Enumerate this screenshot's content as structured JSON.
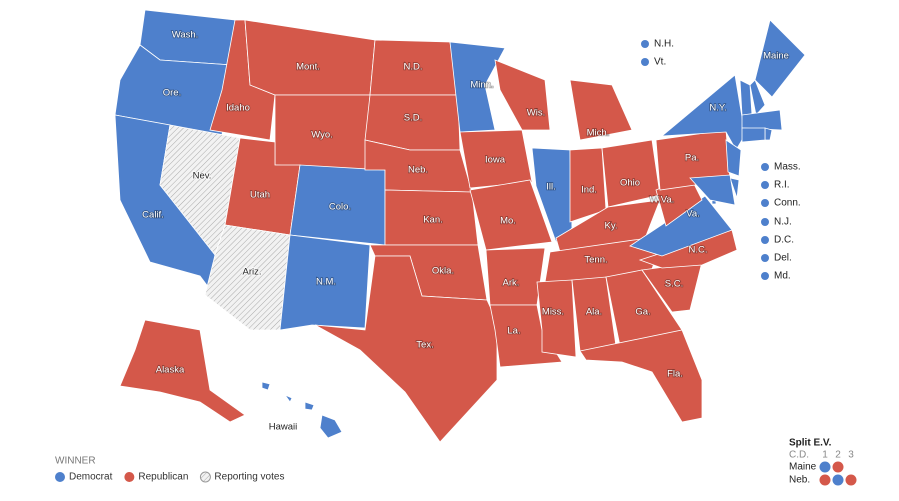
{
  "legend": {
    "title": "WINNER",
    "items": [
      {
        "label": "Democrat",
        "color": "#4e80cc"
      },
      {
        "label": "Republican",
        "color": "#d4584a"
      },
      {
        "label": "Reporting votes"
      }
    ]
  },
  "states": [
    {
      "label": "Wash.",
      "winner": "Democrat"
    },
    {
      "label": "Ore.",
      "winner": "Democrat"
    },
    {
      "label": "Calif.",
      "winner": "Democrat"
    },
    {
      "label": "Nev.",
      "winner": "Reporting votes"
    },
    {
      "label": "Idaho",
      "winner": "Republican"
    },
    {
      "label": "Mont.",
      "winner": "Republican"
    },
    {
      "label": "Wyo.",
      "winner": "Republican"
    },
    {
      "label": "Utah",
      "winner": "Republican"
    },
    {
      "label": "Ariz.",
      "winner": "Reporting votes"
    },
    {
      "label": "Colo.",
      "winner": "Democrat"
    },
    {
      "label": "N.M.",
      "winner": "Democrat"
    },
    {
      "label": "N.D.",
      "winner": "Republican"
    },
    {
      "label": "S.D.",
      "winner": "Republican"
    },
    {
      "label": "Neb.",
      "winner": "Republican"
    },
    {
      "label": "Kan.",
      "winner": "Republican"
    },
    {
      "label": "Okla.",
      "winner": "Republican"
    },
    {
      "label": "Tex.",
      "winner": "Republican"
    },
    {
      "label": "Minn.",
      "winner": "Democrat"
    },
    {
      "label": "Iowa",
      "winner": "Republican"
    },
    {
      "label": "Mo.",
      "winner": "Republican"
    },
    {
      "label": "Ark.",
      "winner": "Republican"
    },
    {
      "label": "La.",
      "winner": "Republican"
    },
    {
      "label": "Wis.",
      "winner": "Republican"
    },
    {
      "label": "Ill.",
      "winner": "Democrat"
    },
    {
      "label": "Mich.",
      "winner": "Republican"
    },
    {
      "label": "Ind.",
      "winner": "Republican"
    },
    {
      "label": "Ohio",
      "winner": "Republican"
    },
    {
      "label": "Ky.",
      "winner": "Republican"
    },
    {
      "label": "Tenn.",
      "winner": "Republican"
    },
    {
      "label": "Miss.",
      "winner": "Republican"
    },
    {
      "label": "Ala.",
      "winner": "Republican"
    },
    {
      "label": "Ga.",
      "winner": "Republican"
    },
    {
      "label": "Fla.",
      "winner": "Republican"
    },
    {
      "label": "S.C.",
      "winner": "Republican"
    },
    {
      "label": "N.C.",
      "winner": "Republican"
    },
    {
      "label": "Va.",
      "winner": "Democrat"
    },
    {
      "label": "W.Va.",
      "winner": "Republican"
    },
    {
      "label": "Pa.",
      "winner": "Republican"
    },
    {
      "label": "N.Y.",
      "winner": "Democrat"
    },
    {
      "label": "Maine",
      "winner": "Democrat"
    },
    {
      "label": "Alaska",
      "winner": "Republican"
    },
    {
      "label": "Hawaii",
      "winner": "Democrat"
    },
    {
      "label": "N.H.",
      "winner": "Democrat"
    },
    {
      "label": "Vt.",
      "winner": "Democrat"
    },
    {
      "label": "Mass.",
      "winner": "Democrat"
    },
    {
      "label": "R.I.",
      "winner": "Democrat"
    },
    {
      "label": "Conn.",
      "winner": "Democrat"
    },
    {
      "label": "N.J.",
      "winner": "Democrat"
    },
    {
      "label": "D.C.",
      "winner": "Democrat"
    },
    {
      "label": "Del.",
      "winner": "Democrat"
    },
    {
      "label": "Md.",
      "winner": "Democrat"
    }
  ],
  "split_ev": {
    "title": "Split E.V.",
    "subtitle": "C.D.",
    "districts": [
      1,
      2,
      3
    ],
    "rows": [
      {
        "label": "Maine",
        "winners": [
          "Democrat",
          "Republican"
        ]
      },
      {
        "label": "Neb.",
        "winners": [
          "Republican",
          "Democrat",
          "Republican"
        ]
      }
    ]
  }
}
